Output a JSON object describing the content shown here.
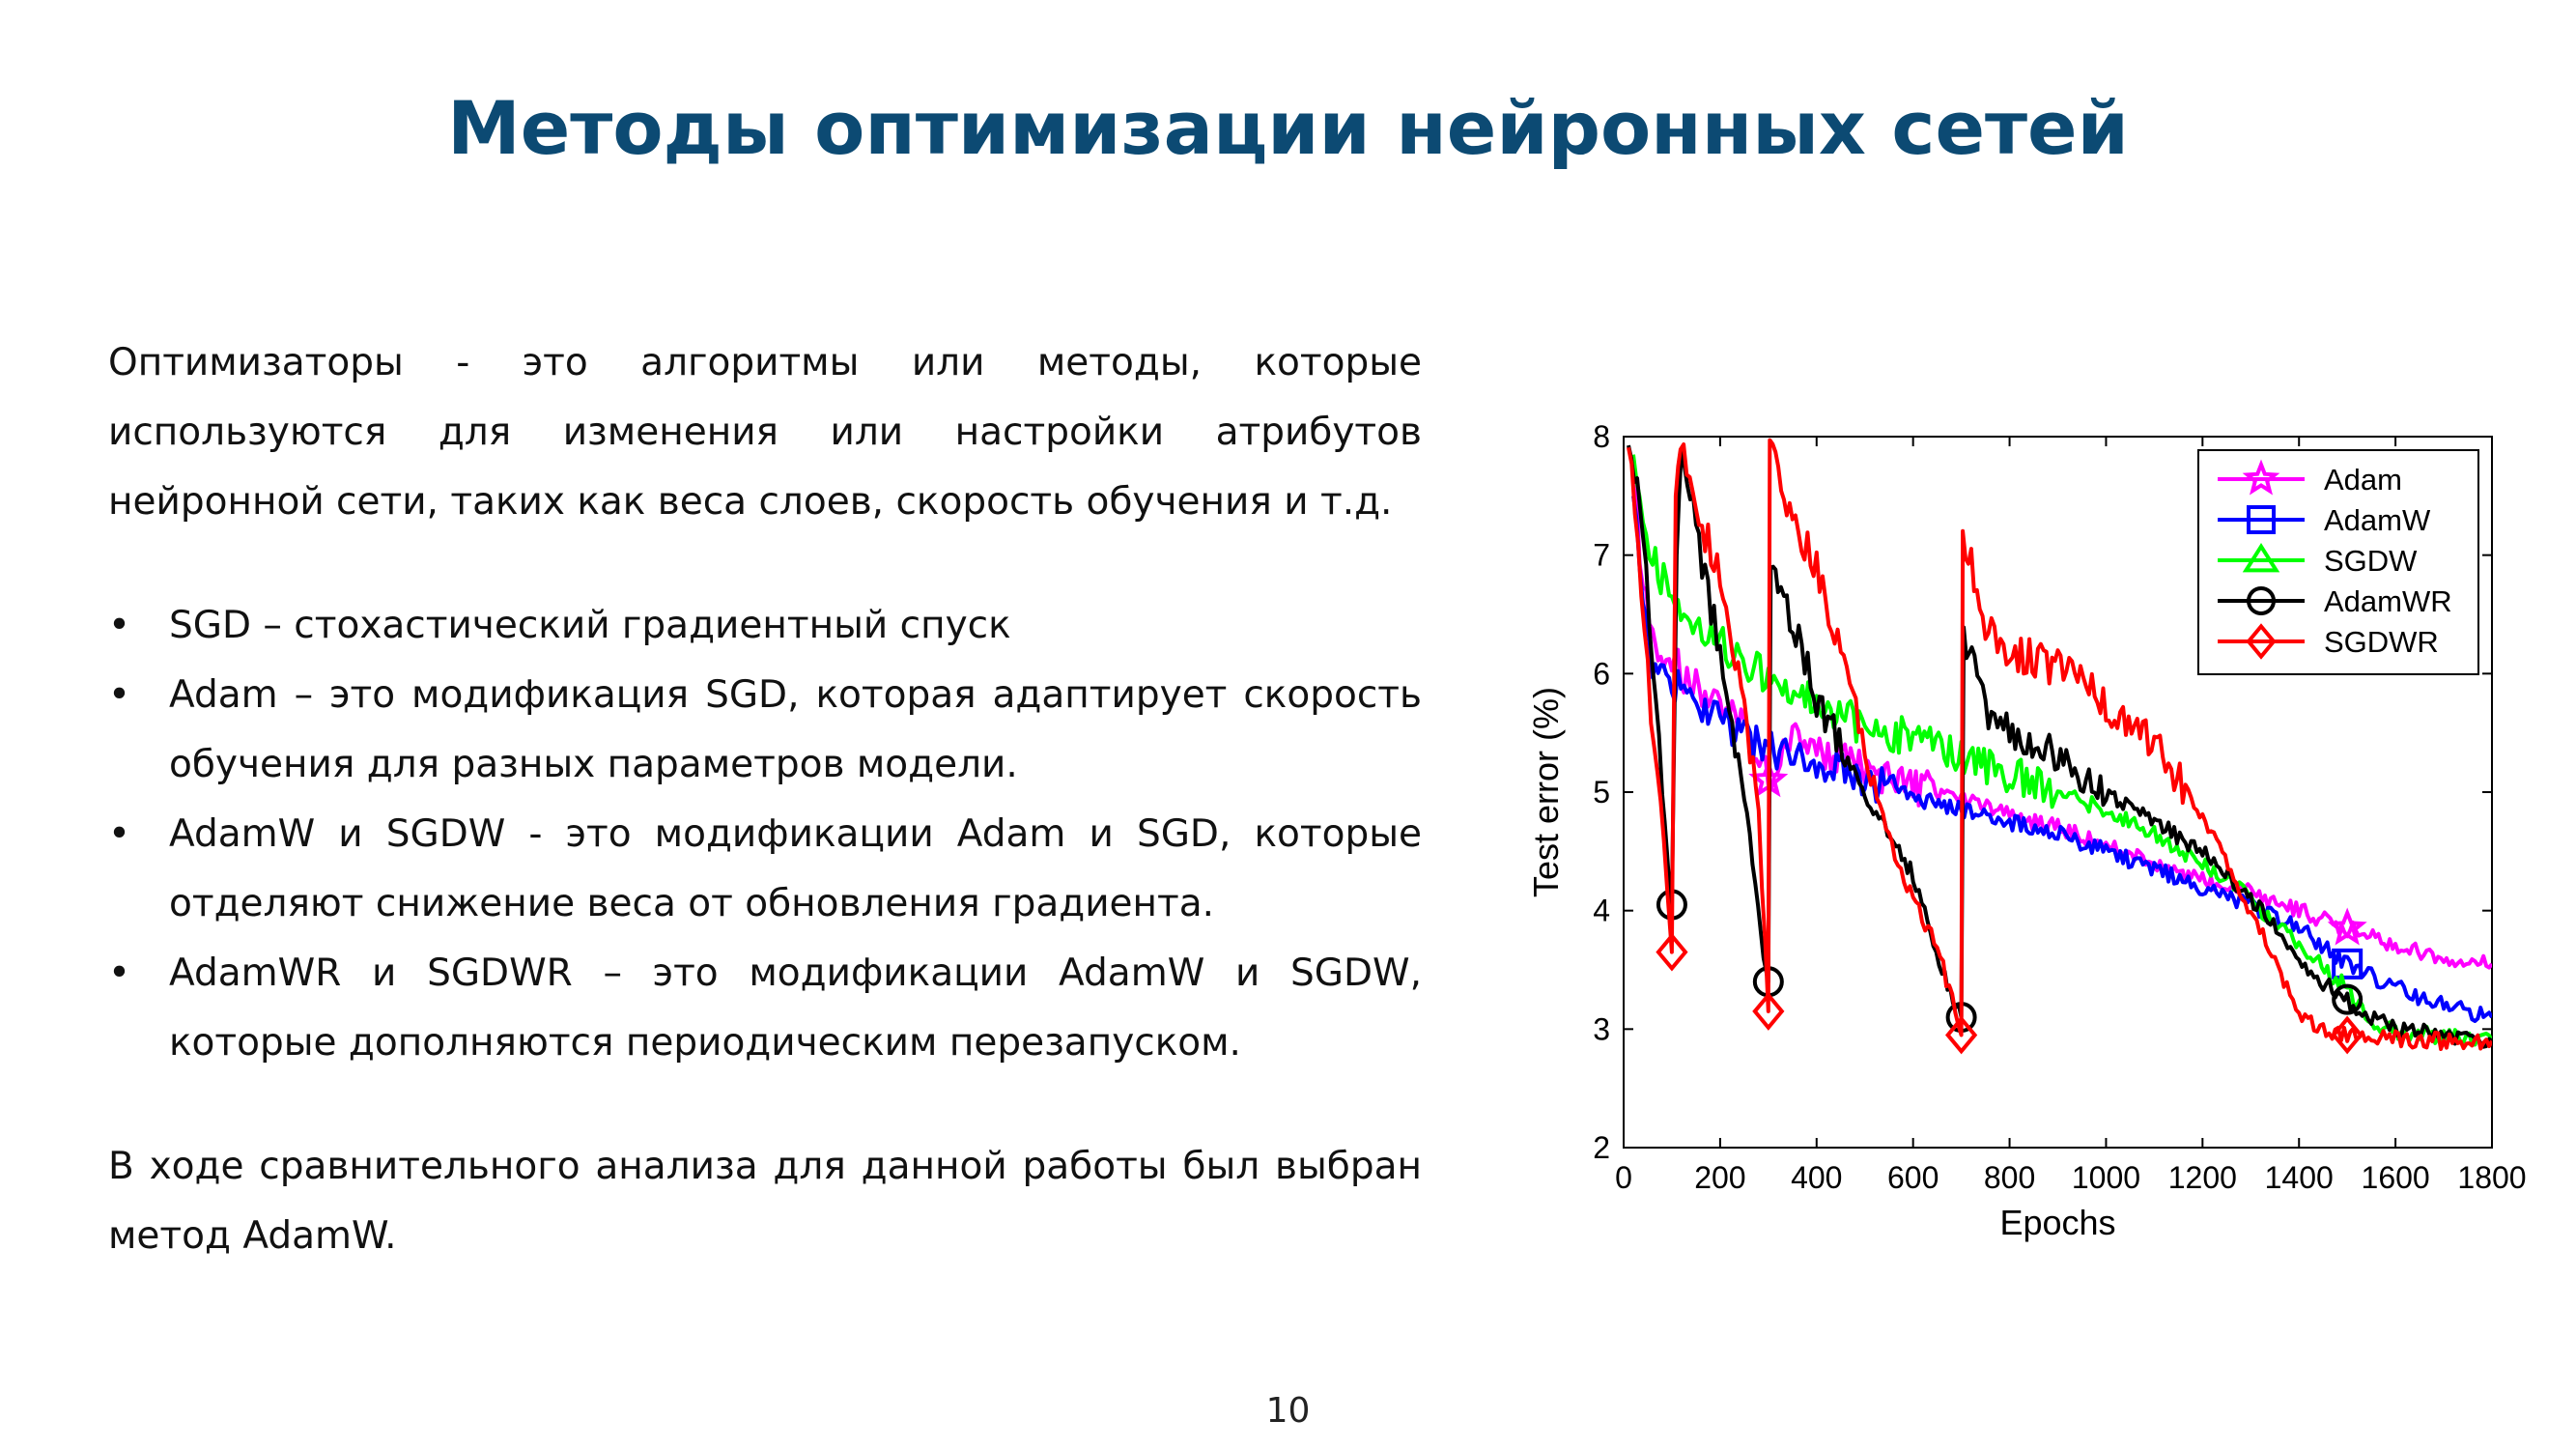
{
  "slide": {
    "title": "Методы оптимизации нейронных сетей",
    "intro": "Оптимизаторы - это алгоритмы или методы, которые используются для изменения или настройки атрибутов нейронной сети, таких как веса слоев, скорость обучения и т.д.",
    "bullet_char": "•",
    "bullets": [
      "SGD – стохастический градиентный спуск",
      "Adam – это модификация SGD, которая адаптирует скорость обучения для разных параметров модели.",
      "AdamW и SGDW - это модификации Adam и SGD, которые отделяют снижение веса от обновления градиента.",
      "AdamWR и SGDWR – это модификации AdamW и SGDW, которые дополняются периодическим перезапуском."
    ],
    "conclusion": "В ходе сравнительного анализа для данной работы был выбран метод AdamW.",
    "page_number": "10"
  },
  "chart_data": {
    "type": "line",
    "xlabel": "Epochs",
    "ylabel": "Test error (%)",
    "xlim": [
      0,
      1800
    ],
    "ylim": [
      2,
      8
    ],
    "xticks": [
      0,
      200,
      400,
      600,
      800,
      1000,
      1200,
      1400,
      1600,
      1800
    ],
    "yticks": [
      2,
      3,
      4,
      5,
      6,
      7,
      8
    ],
    "legend_position": "top-right",
    "series": [
      {
        "name": "Adam",
        "color": "#ff00ff",
        "marker": "star",
        "marker_at": [
          300,
          1500
        ],
        "points": [
          [
            20,
            7.8
          ],
          [
            40,
            6.7
          ],
          [
            60,
            6.3
          ],
          [
            100,
            6.1
          ],
          [
            150,
            5.9
          ],
          [
            200,
            5.75
          ],
          [
            250,
            5.55
          ],
          [
            300,
            5.1
          ],
          [
            350,
            5.45
          ],
          [
            400,
            5.35
          ],
          [
            500,
            5.2
          ],
          [
            600,
            5.05
          ],
          [
            700,
            4.95
          ],
          [
            800,
            4.8
          ],
          [
            900,
            4.7
          ],
          [
            1000,
            4.55
          ],
          [
            1100,
            4.4
          ],
          [
            1200,
            4.25
          ],
          [
            1300,
            4.15
          ],
          [
            1400,
            4.0
          ],
          [
            1500,
            3.85
          ],
          [
            1600,
            3.7
          ],
          [
            1700,
            3.6
          ],
          [
            1800,
            3.55
          ]
        ]
      },
      {
        "name": "AdamW",
        "color": "#0000ff",
        "marker": "square",
        "marker_at": [
          1500
        ],
        "points": [
          [
            20,
            7.6
          ],
          [
            40,
            6.5
          ],
          [
            60,
            6.1
          ],
          [
            100,
            5.9
          ],
          [
            150,
            5.75
          ],
          [
            200,
            5.6
          ],
          [
            250,
            5.45
          ],
          [
            300,
            5.35
          ],
          [
            400,
            5.25
          ],
          [
            500,
            5.1
          ],
          [
            600,
            4.95
          ],
          [
            700,
            4.85
          ],
          [
            800,
            4.75
          ],
          [
            900,
            4.65
          ],
          [
            1000,
            4.5
          ],
          [
            1100,
            4.35
          ],
          [
            1200,
            4.2
          ],
          [
            1300,
            4.05
          ],
          [
            1400,
            3.85
          ],
          [
            1500,
            3.55
          ],
          [
            1550,
            3.45
          ],
          [
            1600,
            3.35
          ],
          [
            1700,
            3.2
          ],
          [
            1800,
            3.1
          ]
        ]
      },
      {
        "name": "SGDW",
        "color": "#00ff00",
        "marker": "triangle",
        "marker_at": [],
        "points": [
          [
            20,
            8.0
          ],
          [
            40,
            7.3
          ],
          [
            60,
            7.0
          ],
          [
            100,
            6.6
          ],
          [
            150,
            6.35
          ],
          [
            200,
            6.25
          ],
          [
            300,
            5.95
          ],
          [
            400,
            5.75
          ],
          [
            500,
            5.55
          ],
          [
            600,
            5.45
          ],
          [
            700,
            5.3
          ],
          [
            800,
            5.15
          ],
          [
            900,
            5.0
          ],
          [
            1000,
            4.85
          ],
          [
            1100,
            4.65
          ],
          [
            1200,
            4.4
          ],
          [
            1300,
            4.1
          ],
          [
            1400,
            3.7
          ],
          [
            1500,
            3.35
          ],
          [
            1550,
            3.05
          ],
          [
            1600,
            2.97
          ],
          [
            1700,
            2.94
          ],
          [
            1800,
            2.9
          ]
        ]
      },
      {
        "name": "AdamWR",
        "color": "#000000",
        "marker": "circle",
        "marker_at": [
          100,
          300,
          700,
          1500
        ],
        "points": [
          [
            10,
            8.0
          ],
          [
            40,
            7.2
          ],
          [
            60,
            6.2
          ],
          [
            80,
            5.0
          ],
          [
            95,
            4.2
          ],
          [
            100,
            4.05
          ],
          [
            110,
            7.0
          ],
          [
            120,
            8.0
          ],
          [
            150,
            7.2
          ],
          [
            200,
            6.2
          ],
          [
            250,
            5.0
          ],
          [
            290,
            3.6
          ],
          [
            300,
            3.4
          ],
          [
            305,
            7.0
          ],
          [
            320,
            6.8
          ],
          [
            400,
            5.8
          ],
          [
            500,
            5.0
          ],
          [
            600,
            4.3
          ],
          [
            660,
            3.5
          ],
          [
            700,
            3.1
          ],
          [
            705,
            6.3
          ],
          [
            750,
            5.7
          ],
          [
            800,
            5.5
          ],
          [
            900,
            5.3
          ],
          [
            1000,
            5.0
          ],
          [
            1100,
            4.75
          ],
          [
            1200,
            4.5
          ],
          [
            1300,
            4.1
          ],
          [
            1400,
            3.6
          ],
          [
            1450,
            3.4
          ],
          [
            1500,
            3.25
          ],
          [
            1550,
            3.1
          ],
          [
            1600,
            3.0
          ],
          [
            1700,
            2.95
          ],
          [
            1800,
            2.9
          ]
        ]
      },
      {
        "name": "SGDWR",
        "color": "#ff0000",
        "marker": "diamond",
        "marker_at": [
          100,
          300,
          700,
          1500
        ],
        "points": [
          [
            10,
            8.0
          ],
          [
            30,
            7.0
          ],
          [
            50,
            6.0
          ],
          [
            70,
            5.2
          ],
          [
            90,
            4.2
          ],
          [
            100,
            3.65
          ],
          [
            108,
            7.5
          ],
          [
            118,
            8.0
          ],
          [
            150,
            7.4
          ],
          [
            200,
            6.8
          ],
          [
            250,
            5.8
          ],
          [
            280,
            4.8
          ],
          [
            300,
            3.15
          ],
          [
            303,
            8.0
          ],
          [
            350,
            7.3
          ],
          [
            400,
            6.9
          ],
          [
            450,
            6.2
          ],
          [
            500,
            5.3
          ],
          [
            550,
            4.6
          ],
          [
            600,
            4.1
          ],
          [
            650,
            3.7
          ],
          [
            700,
            2.95
          ],
          [
            703,
            7.2
          ],
          [
            750,
            6.4
          ],
          [
            800,
            6.2
          ],
          [
            900,
            6.05
          ],
          [
            1000,
            5.75
          ],
          [
            1100,
            5.4
          ],
          [
            1200,
            4.8
          ],
          [
            1300,
            4.0
          ],
          [
            1350,
            3.6
          ],
          [
            1400,
            3.1
          ],
          [
            1450,
            3.0
          ],
          [
            1500,
            2.95
          ],
          [
            1550,
            2.94
          ],
          [
            1600,
            2.92
          ],
          [
            1700,
            2.9
          ],
          [
            1800,
            2.9
          ]
        ]
      }
    ]
  }
}
